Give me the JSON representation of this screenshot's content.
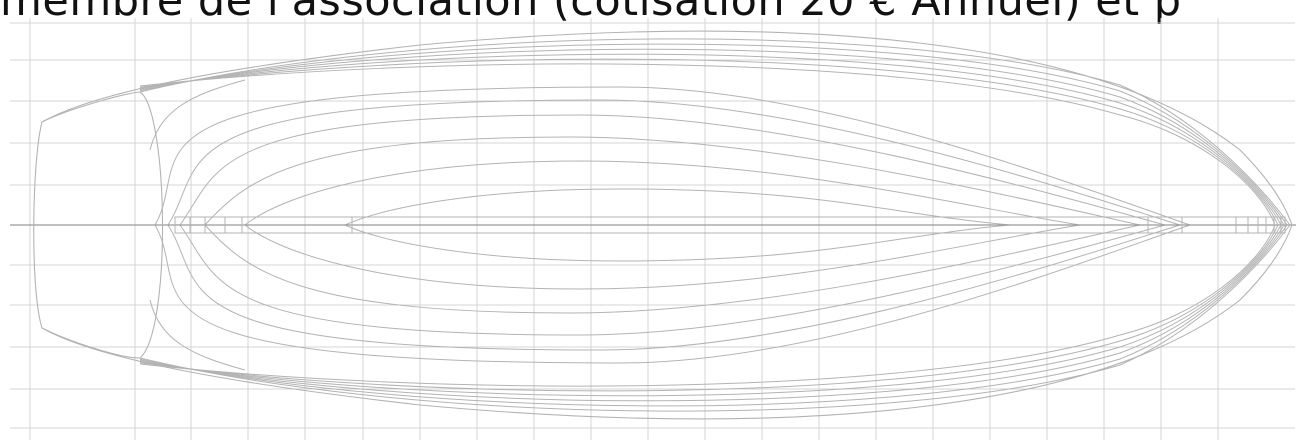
{
  "headline": {
    "text": "membre de l'association (cotisation 20 € Annuel) et p"
  },
  "diagram": {
    "kind": "hull-lines-plan",
    "view": "plan",
    "grid": true,
    "colors": {
      "background": "#ffffff",
      "grid": "#d4d4d4",
      "line": "#b3b3b3",
      "centerline": "#9a9a9a",
      "text": "#111111"
    }
  }
}
